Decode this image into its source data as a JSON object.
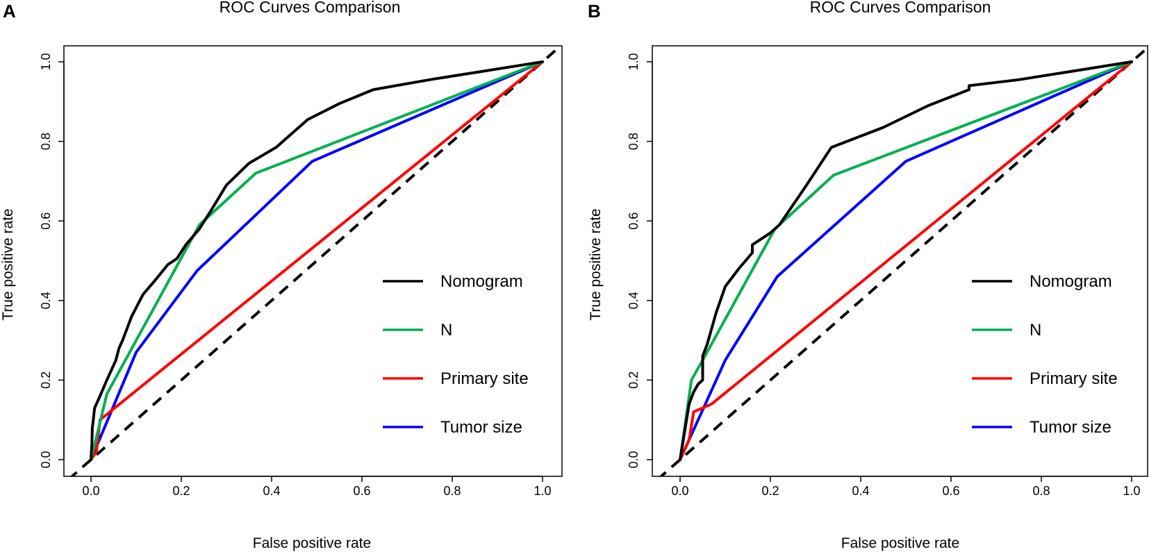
{
  "chart_data": [
    {
      "type": "line",
      "panel_label": "A",
      "title": "ROC Curves Comparison",
      "xlabel": "False positive rate",
      "ylabel": "True positive rate",
      "xlim": [
        -0.04,
        1.04
      ],
      "ylim": [
        -0.04,
        1.04
      ],
      "xticks": [
        "0.0",
        "0.2",
        "0.4",
        "0.6",
        "0.8",
        "1.0"
      ],
      "yticks": [
        "0.0",
        "0.2",
        "0.4",
        "0.6",
        "0.8",
        "1.0"
      ],
      "legend_position": "bottom-right",
      "reference_line": {
        "style": "dashed",
        "color": "#000000",
        "points": [
          [
            0,
            0
          ],
          [
            1,
            1
          ]
        ]
      },
      "series": [
        {
          "name": "Nomogram",
          "color": "#000000",
          "x": [
            0,
            0.002,
            0.003,
            0.005,
            0.008,
            0.012,
            0.02,
            0.035,
            0.055,
            0.062,
            0.07,
            0.09,
            0.115,
            0.145,
            0.17,
            0.19,
            0.21,
            0.24,
            0.265,
            0.3,
            0.35,
            0.38,
            0.41,
            0.445,
            0.48,
            0.55,
            0.625,
            0.75,
            1.0
          ],
          "y": [
            0,
            0.04,
            0.08,
            0.1,
            0.13,
            0.14,
            0.16,
            0.2,
            0.25,
            0.28,
            0.3,
            0.36,
            0.415,
            0.455,
            0.49,
            0.505,
            0.54,
            0.58,
            0.625,
            0.69,
            0.745,
            0.765,
            0.785,
            0.82,
            0.855,
            0.895,
            0.93,
            0.955,
            1.0
          ]
        },
        {
          "name": "N",
          "color": "#00b050",
          "x": [
            0,
            0.035,
            0.24,
            0.365,
            1.0
          ],
          "y": [
            0,
            0.165,
            0.59,
            0.72,
            1.0
          ]
        },
        {
          "name": "Primary site",
          "color": "#ff0000",
          "x": [
            0,
            0.012,
            0.02,
            1.0
          ],
          "y": [
            0,
            0.02,
            0.1,
            1.0
          ]
        },
        {
          "name": "Tumor size",
          "color": "#0000ff",
          "x": [
            0,
            0.1,
            0.235,
            0.49,
            1.0
          ],
          "y": [
            0,
            0.27,
            0.475,
            0.75,
            1.0
          ]
        }
      ]
    },
    {
      "type": "line",
      "panel_label": "B",
      "title": "ROC Curves Comparison",
      "xlabel": "False positive rate",
      "ylabel": "True positive rate",
      "xlim": [
        -0.04,
        1.04
      ],
      "ylim": [
        -0.04,
        1.04
      ],
      "xticks": [
        "0.0",
        "0.2",
        "0.4",
        "0.6",
        "0.8",
        "1.0"
      ],
      "yticks": [
        "0.0",
        "0.2",
        "0.4",
        "0.6",
        "0.8",
        "1.0"
      ],
      "legend_position": "bottom-right",
      "reference_line": {
        "style": "dashed",
        "color": "#000000",
        "points": [
          [
            0,
            0
          ],
          [
            1,
            1
          ]
        ]
      },
      "series": [
        {
          "name": "Nomogram",
          "color": "#000000",
          "x": [
            0,
            0.01,
            0.02,
            0.03,
            0.04,
            0.05,
            0.05,
            0.06,
            0.08,
            0.1,
            0.13,
            0.16,
            0.16,
            0.2,
            0.22,
            0.28,
            0.335,
            0.45,
            0.55,
            0.64,
            0.64,
            0.75,
            1.0
          ],
          "y": [
            0,
            0.07,
            0.14,
            0.17,
            0.19,
            0.2,
            0.26,
            0.29,
            0.37,
            0.435,
            0.48,
            0.52,
            0.54,
            0.57,
            0.59,
            0.69,
            0.785,
            0.835,
            0.89,
            0.93,
            0.94,
            0.955,
            1.0
          ]
        },
        {
          "name": "N",
          "color": "#00b050",
          "x": [
            0,
            0.025,
            0.05,
            0.21,
            0.34,
            1.0
          ],
          "y": [
            0,
            0.2,
            0.25,
            0.58,
            0.715,
            1.0
          ]
        },
        {
          "name": "Primary site",
          "color": "#ff0000",
          "x": [
            0,
            0.02,
            0.03,
            0.07,
            1.0
          ],
          "y": [
            0,
            0.05,
            0.12,
            0.14,
            1.0
          ]
        },
        {
          "name": "Tumor size",
          "color": "#0000ff",
          "x": [
            0,
            0.1,
            0.215,
            0.5,
            1.0
          ],
          "y": [
            0,
            0.25,
            0.46,
            0.75,
            1.0
          ]
        }
      ]
    }
  ]
}
